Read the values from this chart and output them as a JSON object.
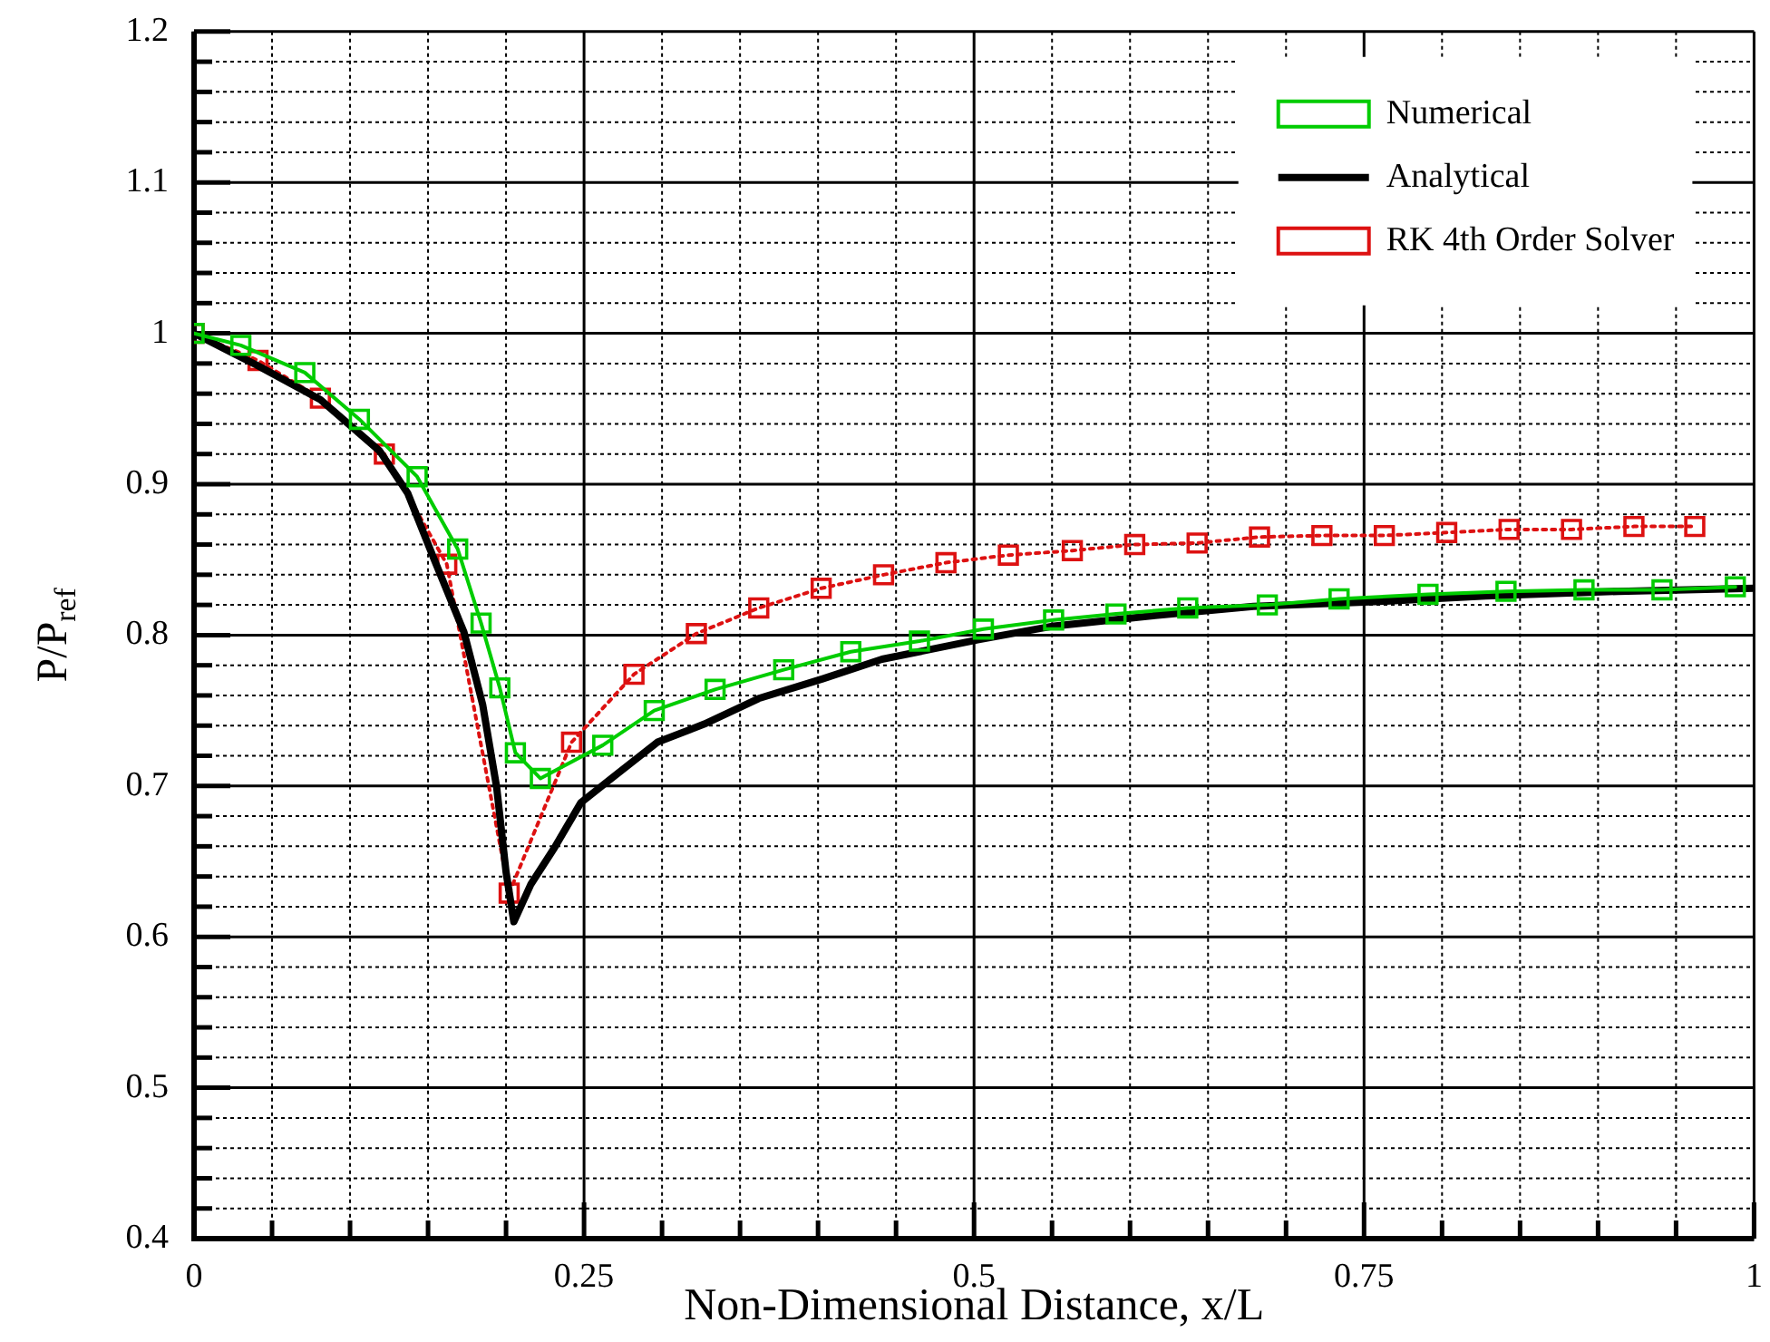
{
  "chart_data": {
    "type": "line",
    "xlabel": "Non-Dimensional Distance, x/L",
    "ylabel": "P/P$_{ref}$",
    "xlim": [
      0,
      1
    ],
    "ylim": [
      0.4,
      1.2
    ],
    "xticks": [
      0,
      {
        "value": 0.05,
        "label": null
      },
      {
        "value": 0.1,
        "label": null
      },
      {
        "value": 0.15,
        "label": null
      },
      {
        "value": 0.2,
        "label": null
      },
      0.25,
      {
        "value": 0.3,
        "label": null
      },
      {
        "value": 0.35,
        "label": null
      },
      {
        "value": 0.4,
        "label": null
      },
      {
        "value": 0.45,
        "label": null
      },
      0.5,
      {
        "value": 0.55,
        "label": null
      },
      {
        "value": 0.6,
        "label": null
      },
      {
        "value": 0.65,
        "label": null
      },
      {
        "value": 0.7,
        "label": null
      },
      0.75,
      {
        "value": 0.8,
        "label": null
      },
      {
        "value": 0.85,
        "label": null
      },
      {
        "value": 0.9,
        "label": null
      },
      {
        "value": 0.95,
        "label": null
      },
      1
    ],
    "yticks": [
      0.4,
      {
        "value": 0.42,
        "label": null
      },
      {
        "value": 0.44,
        "label": null
      },
      {
        "value": 0.46,
        "label": null
      },
      {
        "value": 0.48,
        "label": null
      },
      0.5,
      {
        "value": 0.52,
        "label": null
      },
      {
        "value": 0.54,
        "label": null
      },
      {
        "value": 0.56,
        "label": null
      },
      {
        "value": 0.58,
        "label": null
      },
      0.6,
      {
        "value": 0.62,
        "label": null
      },
      {
        "value": 0.64,
        "label": null
      },
      {
        "value": 0.66,
        "label": null
      },
      {
        "value": 0.68,
        "label": null
      },
      0.7,
      {
        "value": 0.72,
        "label": null
      },
      {
        "value": 0.74,
        "label": null
      },
      {
        "value": 0.76,
        "label": null
      },
      {
        "value": 0.78,
        "label": null
      },
      0.8,
      {
        "value": 0.82,
        "label": null
      },
      {
        "value": 0.84,
        "label": null
      },
      {
        "value": 0.86,
        "label": null
      },
      {
        "value": 0.88,
        "label": null
      },
      0.9,
      {
        "value": 0.92,
        "label": null
      },
      {
        "value": 0.94,
        "label": null
      },
      {
        "value": 0.96,
        "label": null
      },
      {
        "value": 0.98,
        "label": null
      },
      1,
      {
        "value": 1.02,
        "label": null
      },
      {
        "value": 1.04,
        "label": null
      },
      {
        "value": 1.06,
        "label": null
      },
      {
        "value": 1.08,
        "label": null
      },
      1.1,
      {
        "value": 1.12,
        "label": null
      },
      {
        "value": 1.14,
        "label": null
      },
      {
        "value": 1.16,
        "label": null
      },
      {
        "value": 1.18,
        "label": null
      },
      1.2
    ],
    "grid": true,
    "legend": "top right",
    "series": [
      {
        "name": "Numerical",
        "color": "#00cc00",
        "marker": "square",
        "line_style": "solid",
        "x": [
          0,
          0.03,
          0.071,
          0.106,
          0.143,
          0.169,
          0.184,
          0.196,
          0.206,
          0.222,
          0.262,
          0.295,
          0.334,
          0.378,
          0.421,
          0.465,
          0.506,
          0.551,
          0.591,
          0.637,
          0.688,
          0.734,
          0.791,
          0.841,
          0.891,
          0.941,
          0.988
        ],
        "values": [
          1.0,
          0.992,
          0.974,
          0.943,
          0.905,
          0.857,
          0.808,
          0.765,
          0.722,
          0.705,
          0.727,
          0.75,
          0.764,
          0.777,
          0.789,
          0.796,
          0.804,
          0.81,
          0.814,
          0.818,
          0.82,
          0.824,
          0.827,
          0.829,
          0.83,
          0.83,
          0.832
        ]
      },
      {
        "name": "Analytical",
        "color": "#000000",
        "marker": "none",
        "line_style": "solid",
        "x": [
          0,
          0.04,
          0.081,
          0.119,
          0.137,
          0.154,
          0.173,
          0.185,
          0.194,
          0.2,
          0.205,
          0.216,
          0.231,
          0.248,
          0.27,
          0.297,
          0.327,
          0.362,
          0.403,
          0.441,
          0.503,
          0.551,
          0.616,
          0.679,
          0.754,
          0.828,
          0.913,
          1.0
        ],
        "values": [
          1.0,
          0.979,
          0.956,
          0.922,
          0.894,
          0.85,
          0.802,
          0.754,
          0.699,
          0.643,
          0.61,
          0.635,
          0.659,
          0.689,
          0.707,
          0.729,
          0.741,
          0.758,
          0.771,
          0.784,
          0.797,
          0.806,
          0.813,
          0.819,
          0.822,
          0.826,
          0.829,
          0.831
        ]
      },
      {
        "name": "RK 4th Order Solver",
        "color": "#dd1111",
        "marker": "square",
        "line_style": "dotted",
        "x": [
          0,
          0.041,
          0.081,
          0.122,
          0.162,
          0.202,
          0.242,
          0.282,
          0.322,
          0.362,
          0.402,
          0.442,
          0.482,
          0.522,
          0.563,
          0.603,
          0.643,
          0.683,
          0.723,
          0.763,
          0.803,
          0.843,
          0.883,
          0.923,
          0.962
        ],
        "values": [
          1.0,
          0.982,
          0.957,
          0.92,
          0.847,
          0.629,
          0.729,
          0.774,
          0.801,
          0.818,
          0.831,
          0.84,
          0.848,
          0.853,
          0.856,
          0.86,
          0.861,
          0.865,
          0.866,
          0.866,
          0.868,
          0.87,
          0.87,
          0.872,
          0.872
        ]
      }
    ]
  }
}
